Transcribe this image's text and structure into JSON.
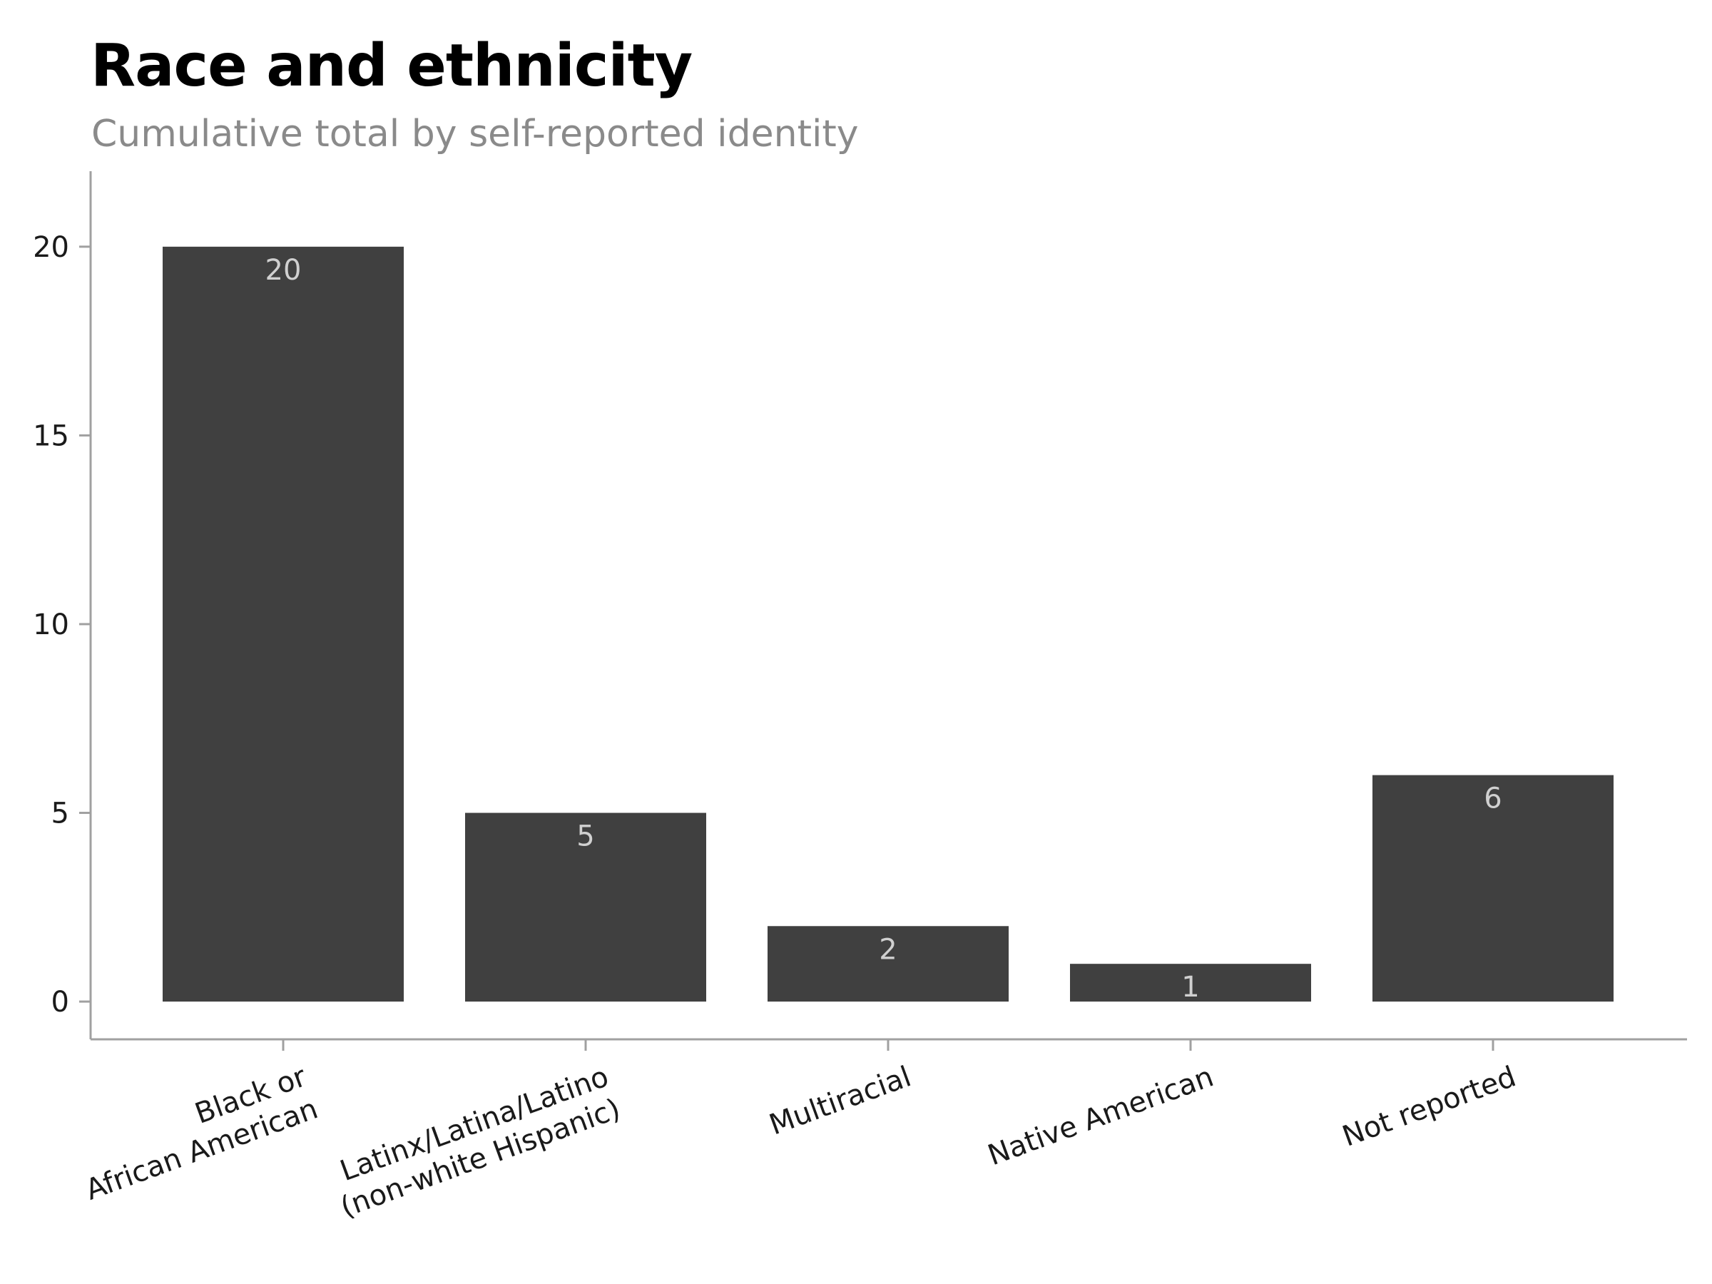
{
  "chart_data": {
    "type": "bar",
    "title": "Race and ethnicity",
    "subtitle": "Cumulative total by self-reported identity",
    "xlabel": "",
    "ylabel": "",
    "categories": [
      [
        "Black or",
        "African American"
      ],
      [
        "Latinx/Latina/Latino",
        "(non-white Hispanic)"
      ],
      [
        "Multiracial"
      ],
      [
        "Native American"
      ],
      [
        "Not reported"
      ]
    ],
    "values": [
      20,
      5,
      2,
      1,
      6
    ],
    "yticks": [
      0,
      5,
      10,
      15,
      20
    ],
    "ylim": [
      -1,
      22
    ],
    "grid": false,
    "legend": "none",
    "colors": {
      "bar": "#404040",
      "data_label": "#d0d0d0",
      "axis": "#a0a0a0",
      "tick_text": "#1a1a1a",
      "title": "#000000",
      "subtitle": "#8a8a8a"
    }
  }
}
